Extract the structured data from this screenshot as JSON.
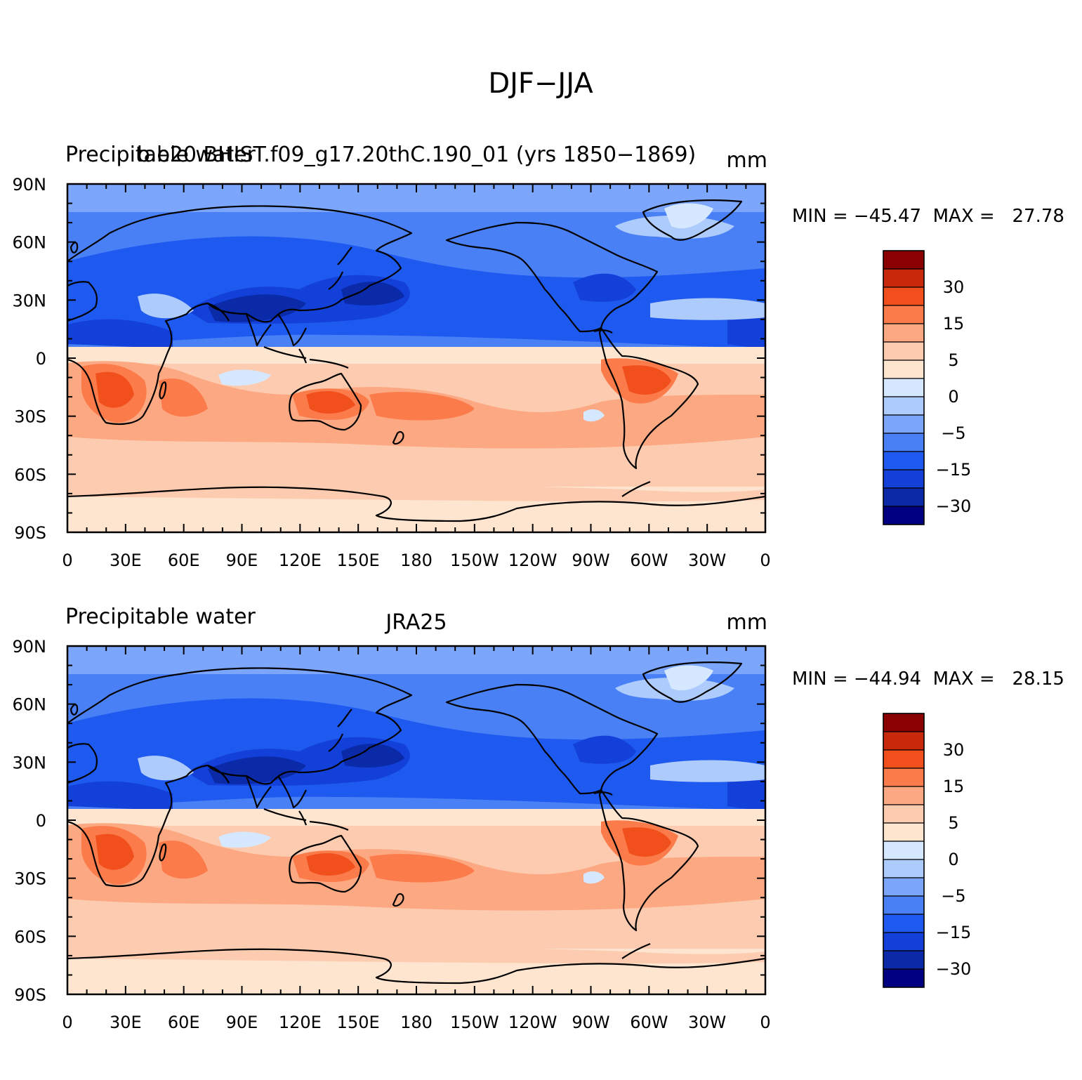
{
  "figure": {
    "title": "DJF−JJA"
  },
  "colors": {
    "levels": [
      "#000080",
      "#0a2aa8",
      "#1340d8",
      "#1e5af0",
      "#4a80f6",
      "#7ba6fb",
      "#aecbfd",
      "#d6e8ff",
      "#fee5d0",
      "#fdcbb0",
      "#fca882",
      "#fb7b4a",
      "#f1501d",
      "#c8290a",
      "#8b0000"
    ],
    "coast": "#000000"
  },
  "colorbar_labels": [
    "30",
    "15",
    "5",
    "0",
    "−5",
    "−15",
    "−30"
  ],
  "lon_ticks": [
    "0",
    "30E",
    "60E",
    "90E",
    "120E",
    "150E",
    "180",
    "150W",
    "120W",
    "90W",
    "60W",
    "30W",
    "0"
  ],
  "lat_ticks": [
    "90N",
    "60N",
    "30N",
    "0",
    "30S",
    "60S",
    "90S"
  ],
  "panels": [
    {
      "left_title": "Precipitable water",
      "center_title": "b.e20.BHIST.f09_g17.20thC.190_01 (yrs 1850−1869)",
      "units": "mm",
      "stats": "MIN = −45.47  MAX =   27.78"
    },
    {
      "left_title": "Precipitable water",
      "center_title": "JRA25",
      "units": "mm",
      "stats": "MIN = −44.94  MAX =   28.15"
    }
  ]
}
